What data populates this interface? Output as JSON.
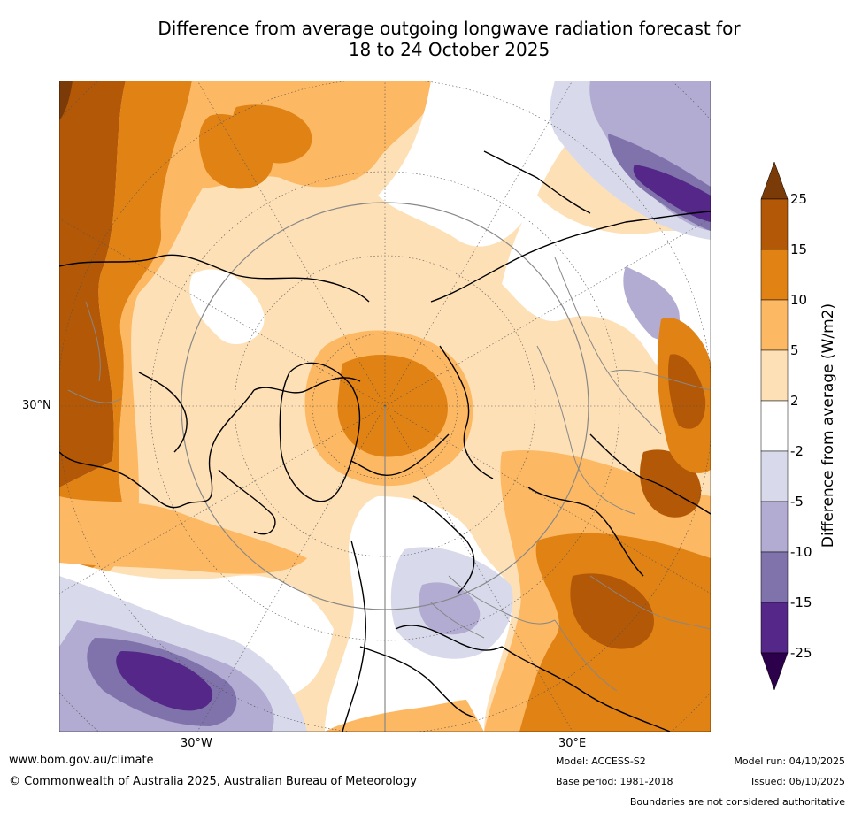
{
  "title": {
    "line1": "Difference from average outgoing longwave radiation forecast for",
    "line2": "18 to 24 October 2025"
  },
  "map": {
    "lat_label": "30°N",
    "lon_labels": [
      "30°W",
      "30°E"
    ]
  },
  "colorbar": {
    "label": "Difference from average (W/m2)",
    "ticks": [
      "25",
      "15",
      "10",
      "5",
      "2",
      "-2",
      "-5",
      "-10",
      "-15",
      "-25"
    ],
    "colors": [
      "#7a3b08",
      "#b35806",
      "#e08214",
      "#fdb863",
      "#fee0b6",
      "#ffffff",
      "#d8daeb",
      "#b2abd2",
      "#8073ac",
      "#542788",
      "#2d004b"
    ]
  },
  "footer": {
    "website": "www.bom.gov.au/climate",
    "copyright": "© Commonwealth of Australia 2025, Australian Bureau of Meteorology",
    "model": "Model: ACCESS-S2",
    "base_period": "Base period: 1981-2018",
    "model_run": "Model run: 04/10/2025",
    "issued": "Issued: 06/10/2025",
    "disclaimer": "Boundaries are not considered authoritative"
  }
}
